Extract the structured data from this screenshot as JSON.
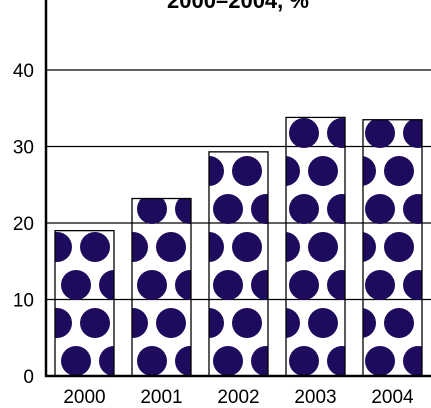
{
  "chart_data": {
    "type": "bar",
    "title": "2000–2004, %",
    "categories": [
      "2000",
      "2001",
      "2002",
      "2003",
      "2004"
    ],
    "values": [
      19,
      23.2,
      29.3,
      33.8,
      33.5
    ],
    "ylim": [
      0,
      40
    ],
    "yticks": [
      "0",
      "10",
      "20",
      "30",
      "40"
    ],
    "grid": true,
    "colors": {
      "dot": "#1e0b5e",
      "bar_fill": "#ffffff",
      "stroke": "#000000"
    }
  }
}
